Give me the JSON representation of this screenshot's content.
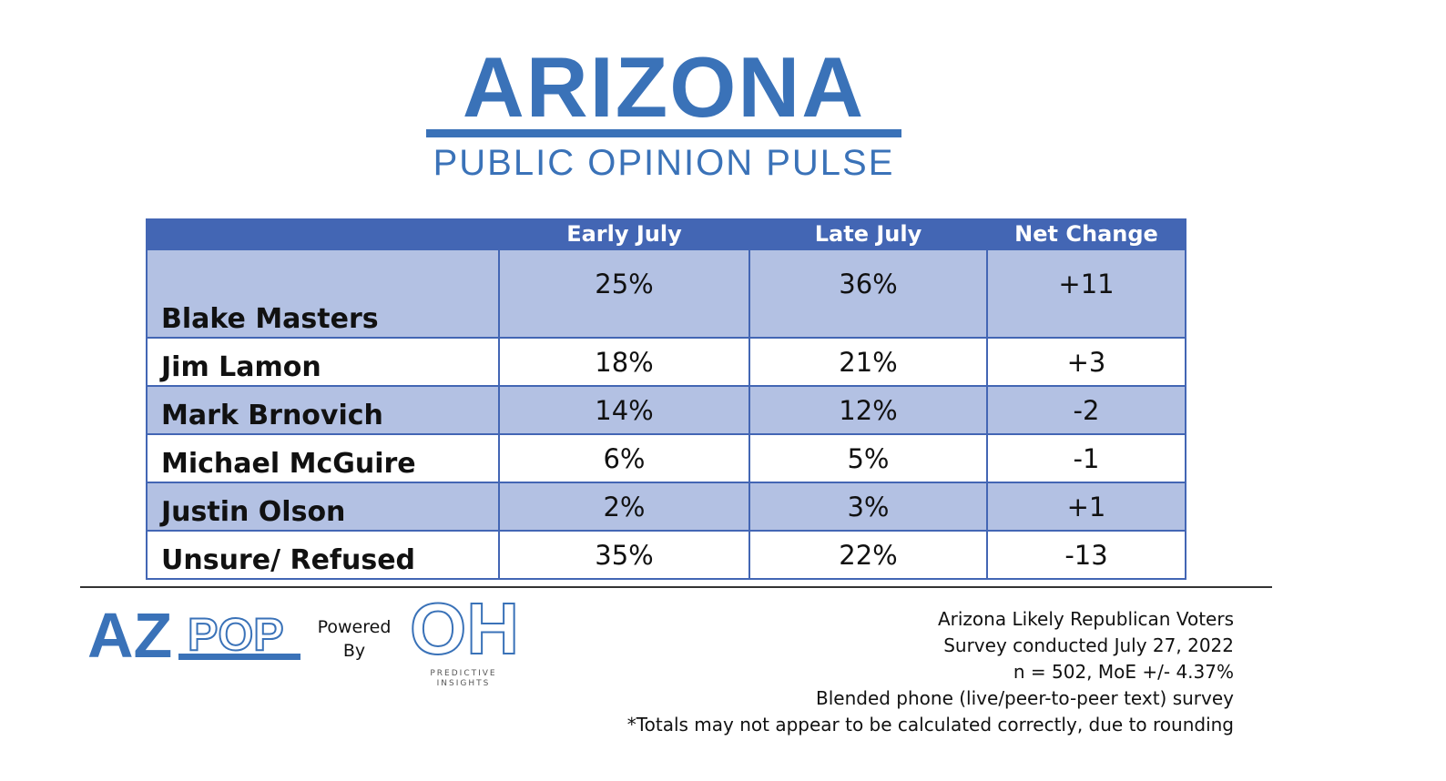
{
  "header": {
    "title": "ARIZONA",
    "subtitle": "PUBLIC OPINION PULSE"
  },
  "table": {
    "columns": [
      "",
      "Early July",
      "Late July",
      "Net Change"
    ],
    "rows": [
      {
        "name": "Blake Masters",
        "early": "25%",
        "late": "36%",
        "change": "+11"
      },
      {
        "name": "Jim Lamon",
        "early": "18%",
        "late": "21%",
        "change": "+3"
      },
      {
        "name": "Mark Brnovich",
        "early": "14%",
        "late": "12%",
        "change": "-2"
      },
      {
        "name": "Michael McGuire",
        "early": "6%",
        "late": "5%",
        "change": "-1"
      },
      {
        "name": "Justin Olson",
        "early": "2%",
        "late": "3%",
        "change": "+1"
      },
      {
        "name": "Unsure/ Refused",
        "early": "35%",
        "late": "22%",
        "change": "-13"
      }
    ]
  },
  "chart_data": {
    "type": "table",
    "title": "ARIZONA",
    "subtitle": "PUBLIC OPINION PULSE",
    "columns": [
      "Early July",
      "Late July",
      "Net Change"
    ],
    "rows": [
      "Blake Masters",
      "Jim Lamon",
      "Mark Brnovich",
      "Michael McGuire",
      "Justin Olson",
      "Unsure/ Refused"
    ],
    "series": [
      {
        "name": "Early July",
        "values": [
          25,
          18,
          14,
          6,
          2,
          35
        ]
      },
      {
        "name": "Late July",
        "values": [
          36,
          21,
          12,
          5,
          3,
          22
        ]
      },
      {
        "name": "Net Change",
        "values": [
          11,
          3,
          -2,
          -1,
          1,
          -13
        ]
      }
    ]
  },
  "footer": {
    "logo_text": "AZPOP",
    "powered_line1": "Powered",
    "powered_line2": "By",
    "partner_logo_text": "OH",
    "partner_caption_line1": "PREDICTIVE",
    "partner_caption_line2": "INSIGHTS",
    "notes": [
      "Arizona Likely Republican Voters",
      "Survey conducted July 27, 2022",
      "n = 502, MoE +/- 4.37%",
      "Blended phone (live/peer-to-peer text) survey",
      "*Totals may not appear to be calculated correctly, due to rounding"
    ]
  },
  "colors": {
    "brand_blue": "#3a72b8",
    "header_row": "#4366b4",
    "band_row": "#b3c1e3"
  }
}
